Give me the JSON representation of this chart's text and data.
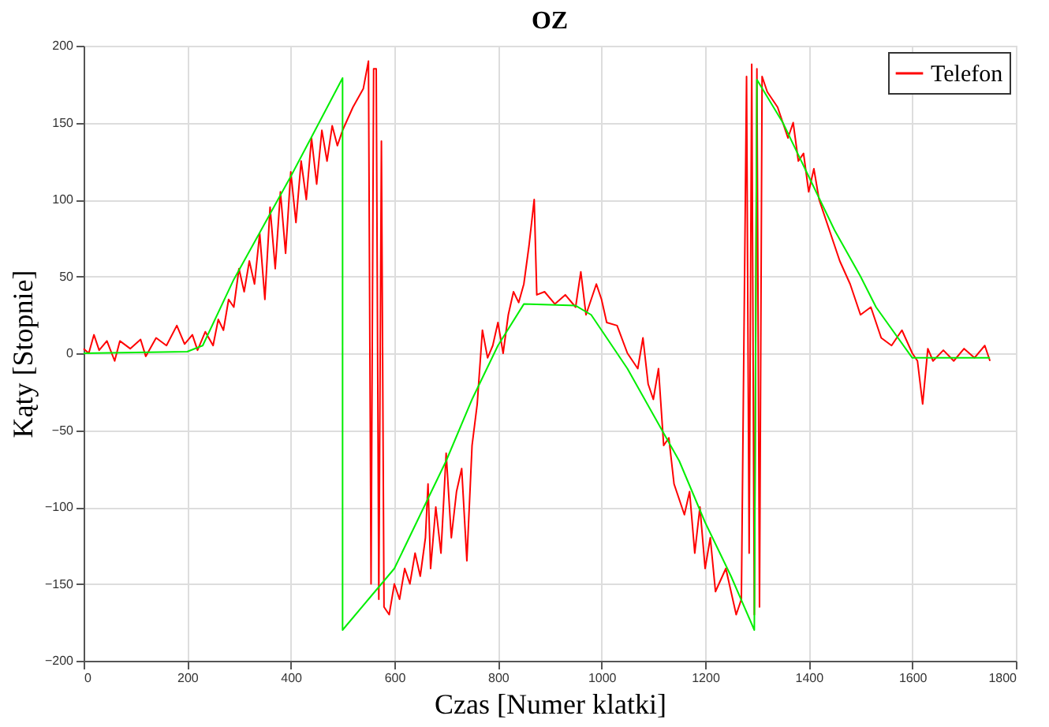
{
  "chart_data": {
    "type": "line",
    "title": "OZ",
    "xlabel": "Czas [Numer klatki]",
    "ylabel": "Kąty [Stopnie]",
    "xlim": [
      0,
      1800
    ],
    "xticks": [
      0,
      200,
      400,
      600,
      800,
      1000,
      1200,
      1400,
      1600,
      1800
    ],
    "ylim": [
      -200,
      200
    ],
    "yticks": [
      -200,
      -150,
      -100,
      -50,
      0,
      50,
      100,
      150,
      200
    ],
    "grid": true,
    "legend": "top right",
    "marker": "none",
    "line_style": "solid",
    "series": [
      {
        "name": "Telefon",
        "color": "#ff0000",
        "x": [
          0,
          10,
          20,
          30,
          45,
          60,
          70,
          90,
          110,
          120,
          140,
          160,
          180,
          195,
          210,
          220,
          235,
          250,
          260,
          270,
          280,
          290,
          300,
          310,
          320,
          330,
          340,
          350,
          360,
          370,
          380,
          390,
          400,
          410,
          420,
          430,
          440,
          450,
          460,
          470,
          480,
          490,
          500,
          520,
          540,
          550,
          555,
          560,
          565,
          570,
          575,
          580,
          590,
          600,
          610,
          620,
          630,
          640,
          650,
          660,
          665,
          670,
          680,
          690,
          700,
          710,
          720,
          730,
          740,
          750,
          760,
          770,
          780,
          790,
          800,
          810,
          820,
          830,
          840,
          850,
          860,
          870,
          875,
          890,
          910,
          930,
          950,
          960,
          970,
          980,
          990,
          1000,
          1010,
          1030,
          1050,
          1070,
          1080,
          1090,
          1100,
          1110,
          1120,
          1130,
          1140,
          1160,
          1170,
          1180,
          1190,
          1200,
          1210,
          1220,
          1240,
          1260,
          1270,
          1280,
          1285,
          1290,
          1295,
          1300,
          1305,
          1310,
          1320,
          1340,
          1360,
          1370,
          1380,
          1390,
          1400,
          1410,
          1420,
          1440,
          1460,
          1480,
          1500,
          1520,
          1540,
          1560,
          1580,
          1600,
          1610,
          1620,
          1630,
          1640,
          1660,
          1680,
          1700,
          1720,
          1740,
          1750
        ],
        "values": [
          3,
          0,
          12,
          2,
          8,
          -5,
          8,
          3,
          9,
          -2,
          10,
          5,
          18,
          6,
          12,
          2,
          14,
          5,
          22,
          15,
          35,
          30,
          55,
          40,
          60,
          45,
          78,
          35,
          95,
          55,
          105,
          65,
          118,
          85,
          125,
          100,
          140,
          110,
          145,
          125,
          148,
          135,
          145,
          160,
          172,
          190,
          -150,
          185,
          185,
          -160,
          138,
          -165,
          -170,
          -150,
          -160,
          -140,
          -150,
          -130,
          -145,
          -120,
          -85,
          -140,
          -100,
          -130,
          -65,
          -120,
          -90,
          -75,
          -135,
          -60,
          -33,
          15,
          -3,
          5,
          20,
          0,
          25,
          40,
          33,
          45,
          70,
          100,
          38,
          40,
          32,
          38,
          30,
          53,
          25,
          35,
          45,
          35,
          20,
          18,
          0,
          -10,
          10,
          -20,
          -30,
          -10,
          -60,
          -55,
          -85,
          -105,
          -90,
          -130,
          -100,
          -140,
          -120,
          -155,
          -140,
          -170,
          -160,
          180,
          -130,
          188,
          -170,
          185,
          -165,
          180,
          170,
          160,
          140,
          150,
          125,
          130,
          105,
          120,
          100,
          80,
          60,
          45,
          25,
          30,
          10,
          5,
          15,
          0,
          -5,
          -33,
          3,
          -5,
          2,
          -5,
          3,
          -3,
          5,
          -5
        ]
      },
      {
        "color": "#00ee00",
        "x": [
          0,
          200,
          230,
          290,
          400,
          500,
          500,
          550,
          600,
          650,
          700,
          750,
          800,
          850,
          950,
          980,
          1050,
          1100,
          1150,
          1200,
          1250,
          1295,
          1300,
          1350,
          1400,
          1450,
          1500,
          1530,
          1600,
          1750
        ],
        "values": [
          0,
          1,
          5,
          48,
          115,
          179,
          -180,
          -160,
          -140,
          -105,
          -70,
          -30,
          5,
          32,
          31,
          25,
          -10,
          -40,
          -70,
          -110,
          -145,
          -180,
          178,
          150,
          115,
          80,
          50,
          30,
          -3,
          -3
        ]
      }
    ]
  }
}
